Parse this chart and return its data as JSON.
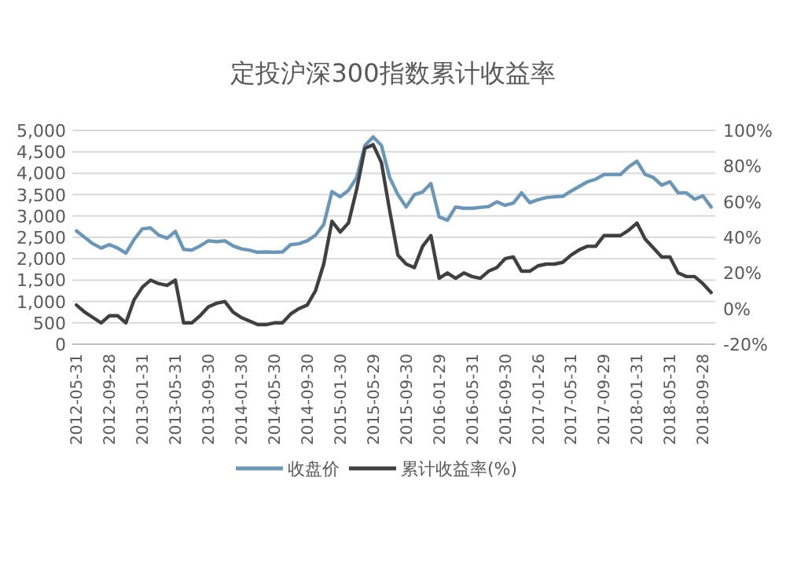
{
  "chart_data": {
    "type": "line",
    "title": "定投沪深300指数累计收益率",
    "categories": [
      "2012-05-31",
      null,
      null,
      null,
      "2012-09-28",
      null,
      null,
      null,
      "2013-01-31",
      null,
      null,
      null,
      "2013-05-31",
      null,
      null,
      null,
      "2013-09-30",
      null,
      null,
      null,
      "2014-01-30",
      null,
      null,
      null,
      "2014-05-30",
      null,
      null,
      null,
      "2014-09-30",
      null,
      null,
      null,
      "2015-01-30",
      null,
      null,
      null,
      "2015-05-29",
      null,
      null,
      null,
      "2015-09-30",
      null,
      null,
      null,
      "2016-01-29",
      null,
      null,
      null,
      "2016-05-31",
      null,
      null,
      null,
      "2016-09-30",
      null,
      null,
      null,
      "2017-01-26",
      null,
      null,
      null,
      "2017-05-31",
      null,
      null,
      null,
      "2017-09-29",
      null,
      null,
      null,
      "2018-01-31",
      null,
      null,
      null,
      "2018-05-31",
      null,
      null,
      null,
      "2018-09-28",
      null
    ],
    "series": [
      {
        "name": "收盘价",
        "color": "#6a97b8",
        "values": [
          2650,
          2500,
          2350,
          2250,
          2330,
          2250,
          2130,
          2450,
          2700,
          2720,
          2550,
          2480,
          2640,
          2220,
          2200,
          2300,
          2420,
          2400,
          2420,
          2300,
          2230,
          2200,
          2150,
          2160,
          2150,
          2160,
          2330,
          2350,
          2420,
          2550,
          2800,
          3570,
          3450,
          3600,
          3900,
          4650,
          4850,
          4650,
          3900,
          3500,
          3210,
          3500,
          3560,
          3760,
          2980,
          2900,
          3210,
          3180,
          3180,
          3200,
          3220,
          3330,
          3250,
          3300,
          3540,
          3310,
          3380,
          3430,
          3450,
          3460,
          3580,
          3690,
          3800,
          3860,
          3970,
          3970,
          3970,
          4150,
          4280,
          3970,
          3900,
          3720,
          3800,
          3540,
          3540,
          3390,
          3470,
          3210
        ]
      },
      {
        "name": "累计收益率(%)",
        "color": "#404040",
        "axis": "y2",
        "values": [
          2,
          -2,
          -5,
          -8,
          -4,
          -4,
          -8,
          5,
          12,
          16,
          14,
          13,
          16,
          -8,
          -8,
          -4,
          1,
          3,
          4,
          -2,
          -5,
          -7,
          -9,
          -9,
          -8,
          -8,
          -3,
          0,
          2,
          10,
          25,
          49,
          43,
          48,
          67,
          90,
          92,
          82,
          55,
          30,
          25,
          23,
          35,
          41,
          17,
          20,
          17,
          20,
          18,
          17,
          21,
          23,
          28,
          29,
          21,
          21,
          24,
          25,
          25,
          26,
          30,
          33,
          35,
          35,
          41,
          41,
          41,
          44,
          48,
          39,
          34,
          29,
          29,
          20,
          18,
          18,
          14,
          9
        ]
      }
    ],
    "ylim": [
      0,
      5000
    ],
    "yticks": [
      0,
      500,
      {
        "value": 1000,
        "label": "1,000"
      },
      {
        "value": 1500,
        "label": "1,500"
      },
      {
        "value": 2000,
        "label": "2,000"
      },
      {
        "value": 2500,
        "label": "2,500"
      },
      {
        "value": 3000,
        "label": "3,000"
      },
      {
        "value": 3500,
        "label": "3,500"
      },
      {
        "value": 4000,
        "label": "4,000"
      },
      {
        "value": 4500,
        "label": "4,500"
      },
      {
        "value": 5000,
        "label": "5,000"
      }
    ],
    "y2lim": [
      -20,
      100
    ],
    "y2ticks": [
      {
        "value": -20,
        "label": "-20%"
      },
      {
        "value": 0,
        "label": "0%"
      },
      {
        "value": 20,
        "label": "20%"
      },
      {
        "value": 40,
        "label": "40%"
      },
      {
        "value": 60,
        "label": "60%"
      },
      {
        "value": 80,
        "label": "80%"
      },
      {
        "value": 100,
        "label": "100%"
      }
    ],
    "grid": "y",
    "legend": "bottom",
    "marker": "none",
    "line_style": "solid"
  }
}
